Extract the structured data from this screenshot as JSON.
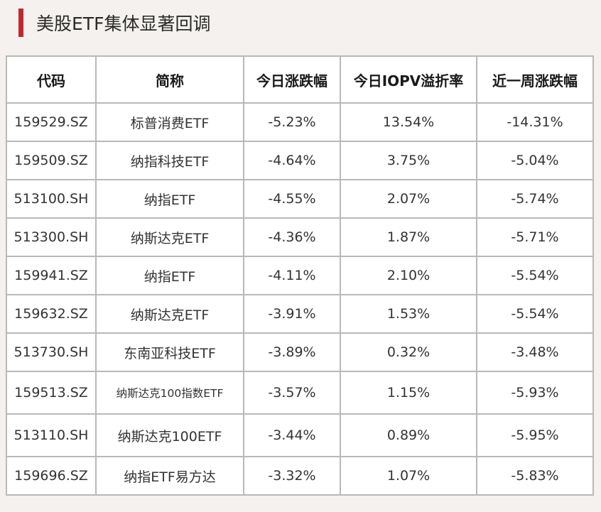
{
  "title": "美股ETF集体显著回调",
  "table": {
    "headers": [
      "代码",
      "简称",
      "今日涨跌幅",
      "今日IOPV溢折率",
      "近一周涨跌幅"
    ],
    "rows": [
      [
        "159529.SZ",
        "标普消费ETF",
        "-5.23%",
        "13.54%",
        "-14.31%"
      ],
      [
        "159509.SZ",
        "纳指科技ETF",
        "-4.64%",
        "3.75%",
        "-5.04%"
      ],
      [
        "513100.SH",
        "纳指ETF",
        "-4.55%",
        "2.07%",
        "-5.74%"
      ],
      [
        "513300.SH",
        "纳斯达克ETF",
        "-4.36%",
        "1.87%",
        "-5.71%"
      ],
      [
        "159941.SZ",
        "纳指ETF",
        "-4.11%",
        "2.10%",
        "-5.54%"
      ],
      [
        "159632.SZ",
        "纳斯达克ETF",
        "-3.91%",
        "1.53%",
        "-5.54%"
      ],
      [
        "513730.SH",
        "东南亚科技ETF",
        "-3.89%",
        "0.32%",
        "-3.48%"
      ],
      [
        "159513.SZ",
        "纳斯达克100指数ETF",
        "-3.57%",
        "1.15%",
        "-5.93%"
      ],
      [
        "513110.SH",
        "纳斯达克100ETF",
        "-3.44%",
        "0.89%",
        "-5.95%"
      ],
      [
        "159696.SZ",
        "纳指ETF易方达",
        "-3.32%",
        "1.07%",
        "-5.83%"
      ]
    ]
  },
  "colors": {
    "accent": "#c0282e",
    "border": "#b9b9b9",
    "background": "#f4f1ee"
  }
}
